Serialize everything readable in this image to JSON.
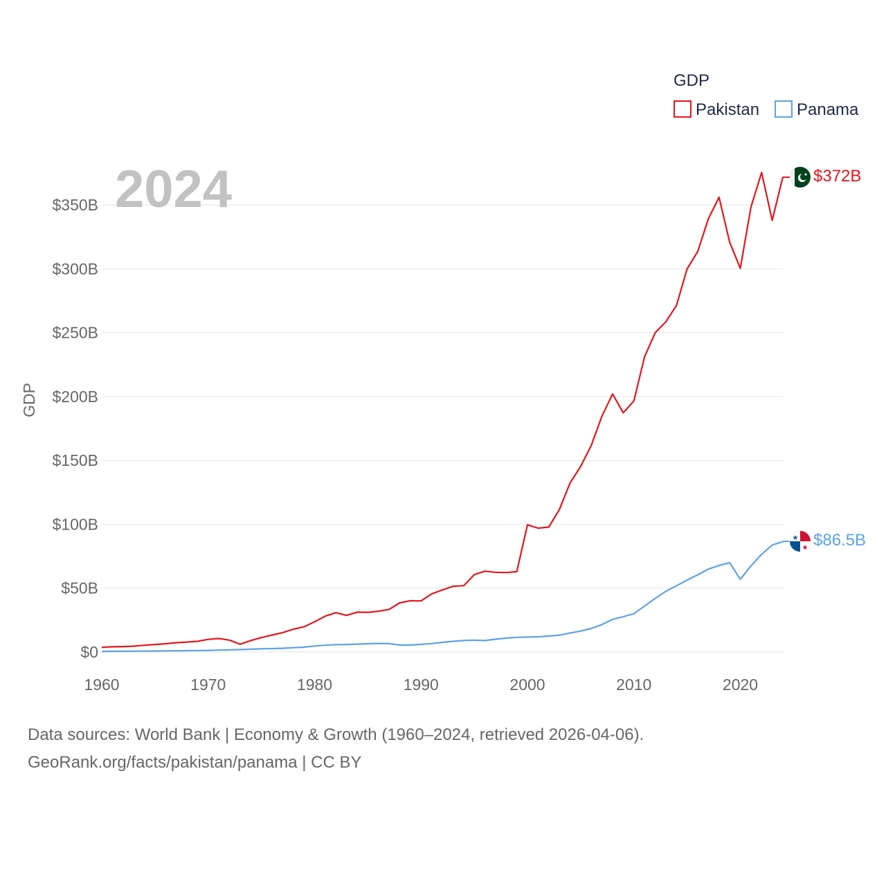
{
  "chart_data": {
    "type": "line",
    "year_label": "2024",
    "legend_title": "GDP",
    "ylabel": "GDP",
    "xlim": [
      1960,
      2024.5
    ],
    "ylim": [
      0,
      400
    ],
    "x_ticks": [
      1960,
      1970,
      1980,
      1990,
      2000,
      2010,
      2020
    ],
    "y_ticks": [
      0,
      50,
      100,
      150,
      200,
      250,
      300,
      350
    ],
    "y_tick_labels": [
      "$0",
      "$50B",
      "$100B",
      "$150B",
      "$200B",
      "$250B",
      "$300B",
      "$350B"
    ],
    "x": [
      1960,
      1961,
      1962,
      1963,
      1964,
      1965,
      1966,
      1967,
      1968,
      1969,
      1970,
      1971,
      1972,
      1973,
      1974,
      1975,
      1976,
      1977,
      1978,
      1979,
      1980,
      1981,
      1982,
      1983,
      1984,
      1985,
      1986,
      1987,
      1988,
      1989,
      1990,
      1991,
      1992,
      1993,
      1994,
      1995,
      1996,
      1997,
      1998,
      1999,
      2000,
      2001,
      2002,
      2003,
      2004,
      2005,
      2006,
      2007,
      2008,
      2009,
      2010,
      2011,
      2012,
      2013,
      2014,
      2015,
      2016,
      2017,
      2018,
      2019,
      2020,
      2021,
      2022,
      2023,
      2024
    ],
    "series": [
      {
        "name": "Pakistan",
        "color": "#e8141b",
        "end_label": "$372B",
        "flag": "pakistan-flag",
        "values": [
          3.7,
          4.1,
          4.3,
          4.6,
          5.3,
          5.9,
          6.5,
          7.3,
          7.8,
          8.4,
          9.9,
          10.6,
          9.3,
          6.1,
          9.0,
          11.3,
          13.3,
          15.2,
          17.9,
          19.7,
          23.7,
          28.1,
          30.8,
          28.7,
          31.2,
          31.1,
          31.9,
          33.4,
          38.5,
          40.2,
          40.0,
          45.5,
          48.6,
          51.5,
          51.9,
          60.6,
          63.3,
          62.4,
          62.2,
          62.9,
          99.6,
          97.0,
          97.8,
          111.5,
          132.3,
          145.4,
          161.9,
          184.6,
          202.0,
          187.3,
          196.6,
          231.0,
          250.0,
          258.5,
          271.3,
          299.9,
          313.6,
          339.2,
          356.1,
          320.9,
          300.4,
          348.3,
          375.4,
          337.9,
          372.0
        ]
      },
      {
        "name": "Panama",
        "color": "#5ba3e6",
        "end_label": "$86.5B",
        "flag": "panama-flag",
        "values": [
          0.5,
          0.6,
          0.6,
          0.7,
          0.7,
          0.8,
          0.9,
          1.0,
          1.1,
          1.2,
          1.3,
          1.5,
          1.7,
          1.9,
          2.2,
          2.5,
          2.7,
          2.9,
          3.4,
          3.8,
          4.7,
          5.3,
          5.8,
          5.9,
          6.2,
          6.5,
          6.7,
          6.6,
          5.5,
          5.5,
          6.0,
          6.6,
          7.6,
          8.4,
          9.0,
          9.3,
          9.0,
          10.0,
          10.9,
          11.5,
          11.7,
          11.9,
          12.5,
          13.2,
          14.9,
          16.4,
          18.4,
          21.5,
          25.6,
          27.7,
          30.0,
          36.0,
          42.0,
          47.5,
          51.9,
          56.3,
          60.5,
          64.9,
          67.8,
          69.9,
          57.0,
          67.4,
          76.5,
          83.8,
          86.5
        ]
      }
    ]
  },
  "footer": {
    "line1": "Data sources: World Bank | Economy & Growth (1960–2024, retrieved 2026-04-06).",
    "line2": "GeoRank.org/facts/pakistan/panama | CC BY"
  }
}
